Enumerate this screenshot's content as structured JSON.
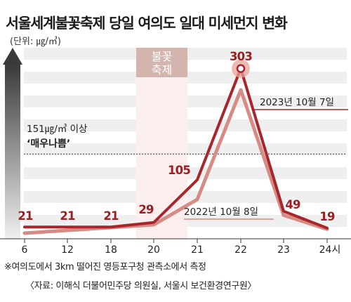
{
  "title": "서울세계불꽃축제 당일 여의도 일대 미세먼지 변화",
  "unit_label": "(단위: ㎍/㎥)",
  "festival_label": [
    "불꽃",
    "축제"
  ],
  "threshold": {
    "value": 151,
    "line1": "151㎍/㎥ 이상",
    "line2": "‘매우나쁨’"
  },
  "note": "※여의도에서 3km 떨어진 영등포구청 관측소에서 측정",
  "source": "〈자료: 이해식 더불어민주당 의원실, 서울시 보건환경연구원〉",
  "colors": {
    "series_2023": "#a8262b",
    "series_2022": "#d48c84",
    "band_dark": "#d4b5ae",
    "band_light": "#fbeeec",
    "label": "#9c1f22"
  },
  "chart_data": {
    "type": "line",
    "categories": [
      "6",
      "12",
      "18",
      "20",
      "21",
      "22",
      "23",
      "24시"
    ],
    "ylim": [
      0,
      340
    ],
    "series": [
      {
        "name": "2023년 10월 7일",
        "values": [
          21,
          21,
          21,
          29,
          105,
          303,
          49,
          19
        ]
      },
      {
        "name": "2022년 10월 8일",
        "values": [
          10,
          15,
          20,
          25,
          70,
          265,
          42,
          17
        ]
      }
    ],
    "data_labels": [
      "21",
      "21",
      "21",
      "29",
      "105",
      "303",
      "49",
      "19"
    ],
    "festival_band": [
      "20",
      "21"
    ]
  }
}
